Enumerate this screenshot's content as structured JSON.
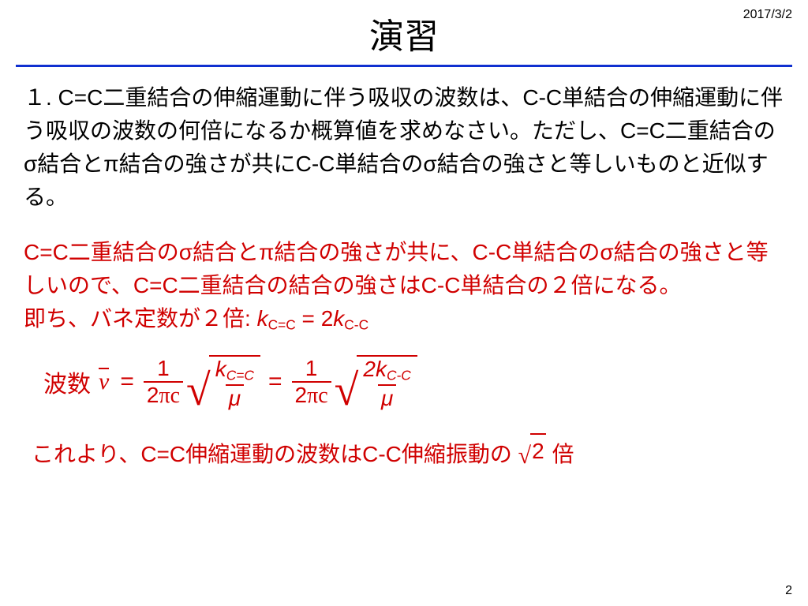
{
  "meta": {
    "date": "2017/3/2",
    "page_number": "2"
  },
  "title": "演習",
  "colors": {
    "rule": "#1030d0",
    "question_text": "#000000",
    "answer_text": "#d00000",
    "background": "#ffffff"
  },
  "typography": {
    "title_fontsize_pt": 44,
    "body_fontsize_pt": 28,
    "formula_fontsize_pt": 30
  },
  "question": {
    "text": "１. C=C二重結合の伸縮運動に伴う吸収の波数は、C-C単結合の伸縮運動に伴う吸収の波数の何倍になるか概算値を求めなさい。ただし、C=C二重結合のσ結合とπ結合の強さが共にC-C単結合のσ結合の強さと等しいものと近似する。"
  },
  "answer": {
    "para1": "C=C二重結合のσ結合とπ結合の強さが共に、C-C単結合のσ結合の強さと等しいので、C=C二重結合の結合の強さはC-C単結合の２倍になる。",
    "para2_prefix": "即ち、バネ定数が２倍: ",
    "k_lhs_var": "k",
    "k_lhs_sub": "C=C",
    "k_eq": " = 2",
    "k_rhs_var": "k",
    "k_rhs_sub": "C-C"
  },
  "formula": {
    "label": "波数",
    "nu": "ν",
    "eq": "=",
    "coef_num": "1",
    "coef_den_two": "2",
    "coef_den_pi": "π",
    "coef_den_c": "c",
    "rad1_num_k": "k",
    "rad1_num_sub": "C=C",
    "rad1_den": "μ",
    "rad2_num_two": "2",
    "rad2_num_k": "k",
    "rad2_num_sub": "C-C",
    "rad2_den": "μ"
  },
  "conclusion": {
    "prefix": "これより、C=C伸縮運動の波数はC-C伸縮振動の ",
    "root_val": "2",
    "suffix": " 倍"
  }
}
